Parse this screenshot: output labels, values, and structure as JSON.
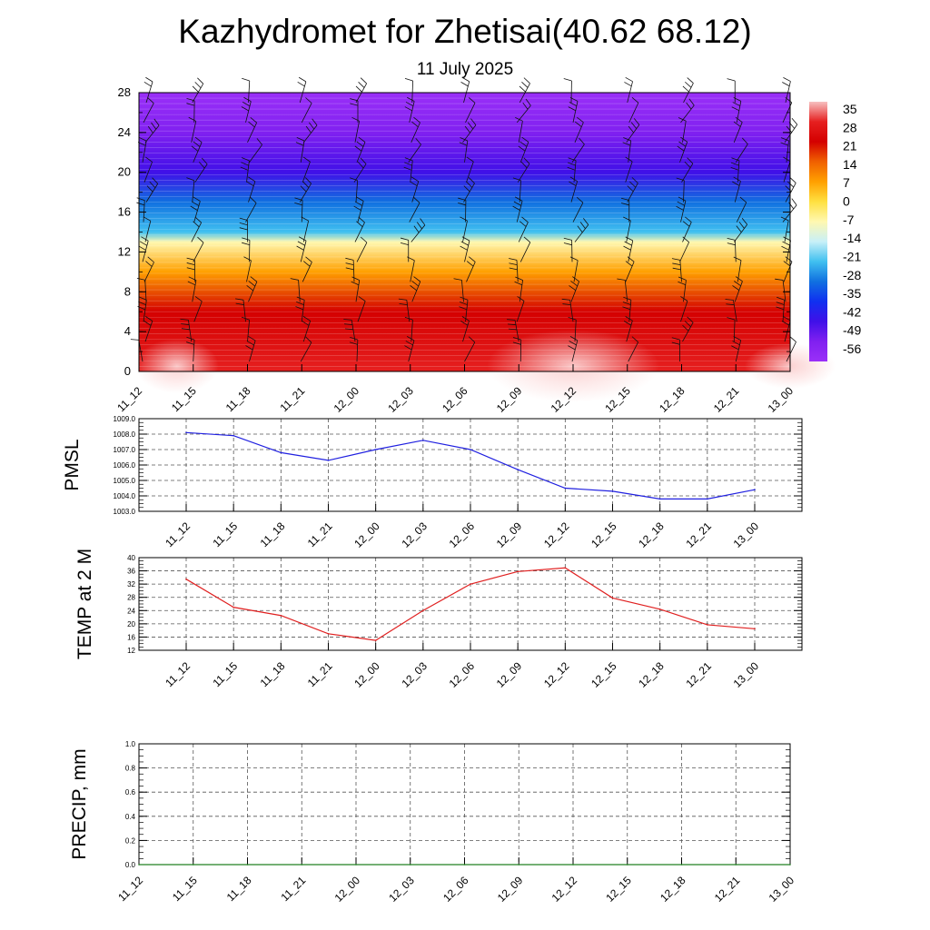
{
  "title": "Kazhydromet for Zhetisai(40.62 68.12)",
  "subtitle": "11 July 2025",
  "chart_data": [
    {
      "type": "heatmap",
      "description_note": "",
      "x_labels": [
        "11_12",
        "11_15",
        "11_18",
        "11_21",
        "12_00",
        "12_03",
        "12_06",
        "12_09",
        "12_12",
        "12_15",
        "12_18",
        "12_21",
        "13_00"
      ],
      "y_ticks": [
        0,
        4,
        8,
        12,
        16,
        20,
        24,
        28
      ],
      "ylim": [
        0,
        28
      ],
      "colorbar_labels": [
        "35",
        "28",
        "21",
        "14",
        "7",
        "0",
        "-7",
        "-14",
        "-21",
        "-28",
        "-35",
        "-42",
        "-49",
        "-56"
      ],
      "colorbar_stops": [
        "#f7c0c0",
        "#e62020",
        "#d40000",
        "#f06000",
        "#ffa000",
        "#ffe040",
        "#fff8b0",
        "#c8f0f8",
        "#40c0f0",
        "#1070e0",
        "#1030f0",
        "#4010e8",
        "#8020f0",
        "#9a30f8"
      ],
      "profile_bands": [
        {
          "level": 0,
          "temp": 30
        },
        {
          "level": 6,
          "temp": 22
        },
        {
          "level": 10,
          "temp": 5
        },
        {
          "level": 13,
          "temp": -10
        },
        {
          "level": 14,
          "temp": -20
        },
        {
          "level": 17,
          "temp": -32
        },
        {
          "level": 20,
          "temp": -45
        },
        {
          "level": 24,
          "temp": -55
        },
        {
          "level": 28,
          "temp": -60
        }
      ],
      "grid": false
    },
    {
      "type": "line",
      "ylabel": "PMSL",
      "x": [
        "11_12",
        "11_15",
        "11_18",
        "11_21",
        "12_00",
        "12_03",
        "12_06",
        "12_09",
        "12_12",
        "12_15",
        "12_18",
        "12_21",
        "13_00"
      ],
      "values": [
        1008.1,
        1007.9,
        1006.8,
        1006.3,
        1007.0,
        1007.6,
        1007.0,
        1005.7,
        1004.5,
        1004.3,
        1003.8,
        1003.8,
        1004.4
      ],
      "y_ticks": [
        "1003.0",
        "1004.0",
        "1005.0",
        "1006.0",
        "1007.0",
        "1008.0",
        "1009.0"
      ],
      "ylim": [
        1003.0,
        1009.0
      ],
      "color": "#2020e0",
      "grid": true
    },
    {
      "type": "line",
      "ylabel": "TEMP at 2 M",
      "x": [
        "11_12",
        "11_15",
        "11_18",
        "11_21",
        "12_00",
        "12_03",
        "12_06",
        "12_09",
        "12_12",
        "12_15",
        "12_18",
        "12_21",
        "13_00"
      ],
      "values": [
        33.5,
        25.0,
        22.5,
        17.0,
        15.0,
        24.0,
        32.0,
        35.8,
        36.9,
        27.8,
        24.4,
        19.7,
        18.5
      ],
      "y_ticks": [
        "12",
        "16",
        "20",
        "24",
        "28",
        "32",
        "36",
        "40"
      ],
      "ylim": [
        12,
        40
      ],
      "color": "#e02020",
      "grid": true
    },
    {
      "type": "line",
      "ylabel": "PRECIP, mm",
      "x": [
        "11_12",
        "11_15",
        "11_18",
        "11_21",
        "12_00",
        "12_03",
        "12_06",
        "12_09",
        "12_12",
        "12_15",
        "12_18",
        "12_21",
        "13_00"
      ],
      "values": [
        0,
        0,
        0,
        0,
        0,
        0,
        0,
        0,
        0,
        0,
        0,
        0,
        0
      ],
      "y_ticks": [
        "0.0",
        "0.2",
        "0.4",
        "0.6",
        "0.8",
        "1.0"
      ],
      "ylim": [
        0,
        1.0
      ],
      "color": "#208020",
      "grid": true
    }
  ]
}
